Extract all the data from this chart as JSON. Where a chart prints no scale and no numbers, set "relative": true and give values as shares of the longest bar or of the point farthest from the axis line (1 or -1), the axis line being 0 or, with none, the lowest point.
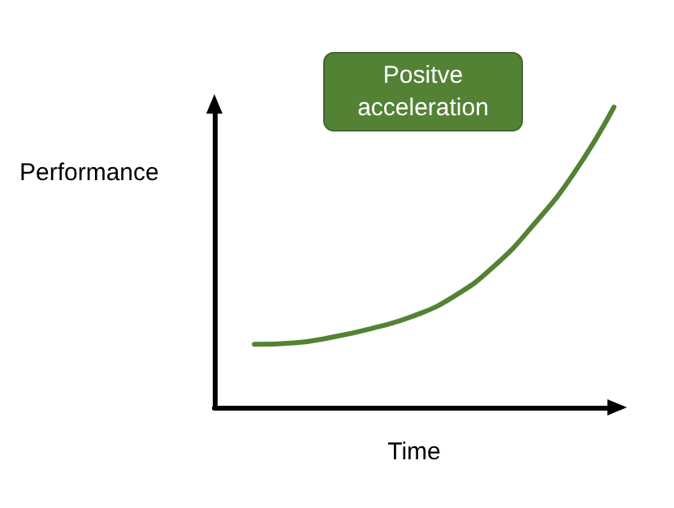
{
  "chart_data": {
    "type": "line",
    "relative": true,
    "xlabel": "Time",
    "ylabel": "Performance",
    "annotations": [
      "Positve\nacceleration"
    ],
    "categories": [
      null,
      null,
      null,
      null,
      null,
      null,
      null,
      null,
      null,
      null,
      null
    ],
    "series": [
      {
        "color": "#548235",
        "values": [
          null,
          0.21,
          0.215,
          0.235,
          0.265,
          0.305,
          0.37,
          0.47,
          0.61,
          0.78,
          1.0
        ]
      }
    ],
    "grid": false,
    "marker": "none",
    "line_style": "solid"
  }
}
